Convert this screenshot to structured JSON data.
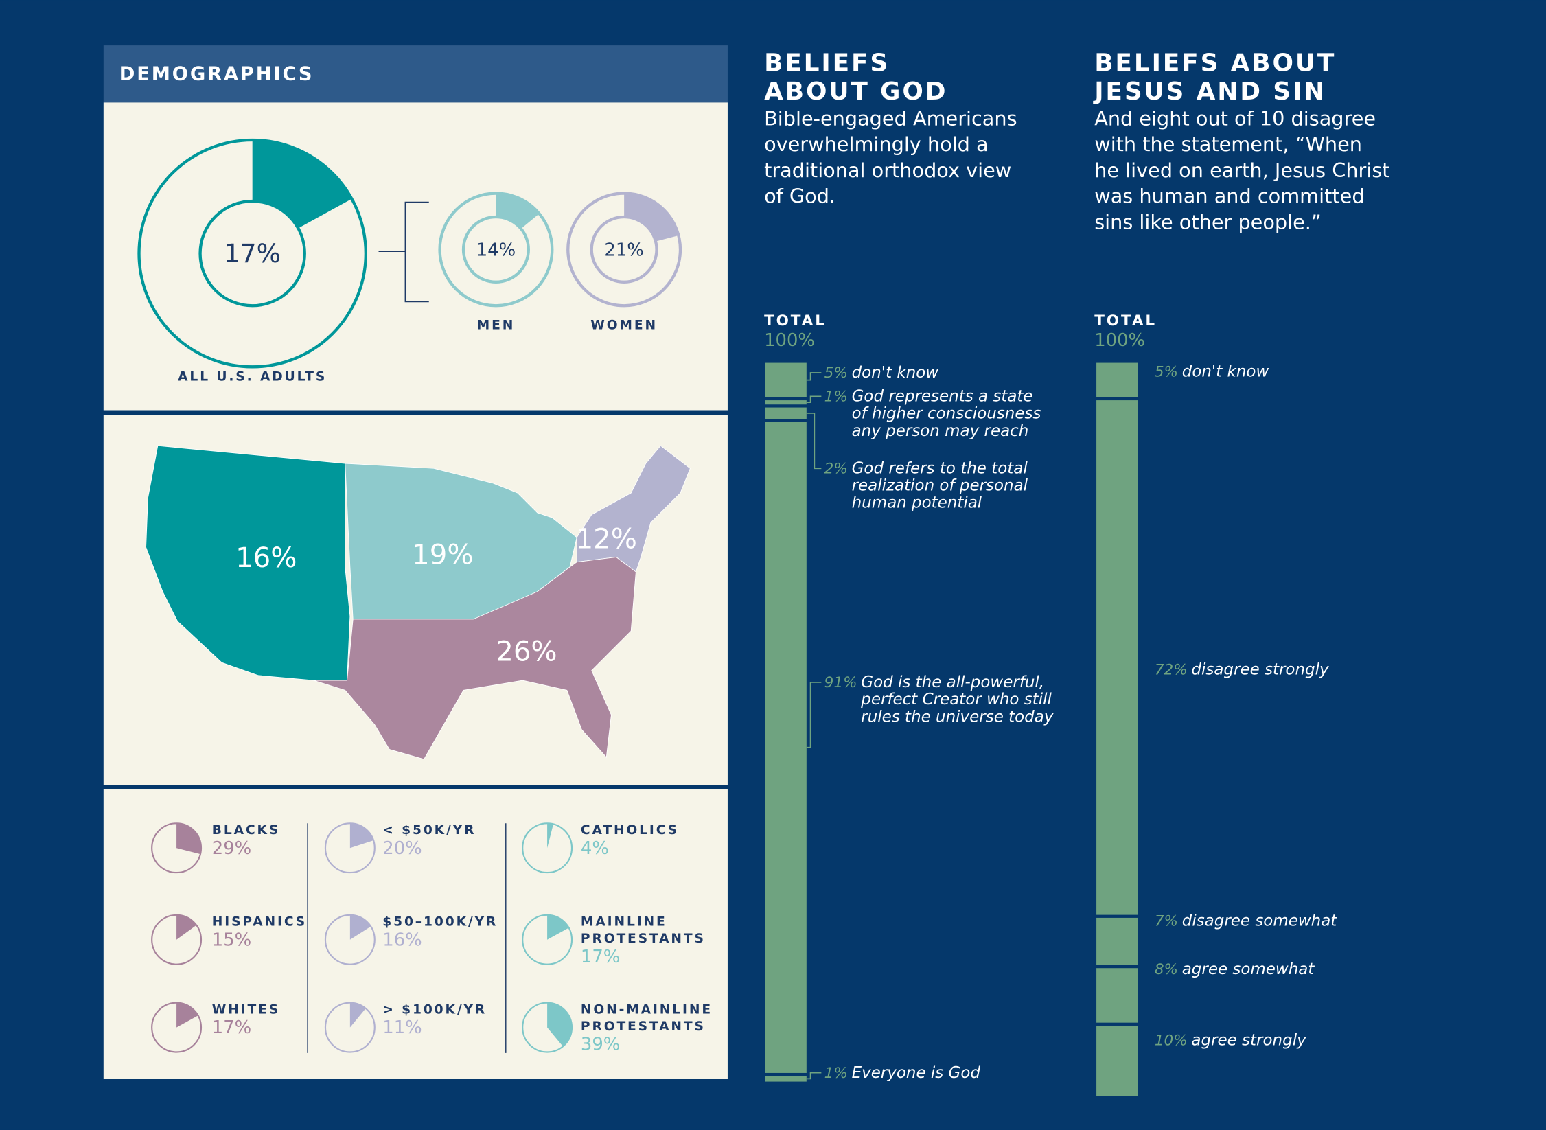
{
  "header": "DEMOGRAPHICS",
  "chart_data": [
    {
      "type": "donut",
      "categories": [
        "ALL U.S. ADULTS",
        "MEN",
        "WOMEN"
      ],
      "values": [
        17,
        14,
        21
      ],
      "value_labels": [
        "17%",
        "14%",
        "21%"
      ],
      "colors": [
        "#00979a",
        "#8ecacc",
        "#b3b3cf"
      ]
    },
    {
      "type": "map",
      "categories": [
        null,
        null,
        null,
        null
      ],
      "values": [
        16,
        19,
        12,
        26
      ],
      "value_labels": [
        "16%",
        "19%",
        "12%",
        "26%"
      ],
      "colors": [
        "#00979a",
        "#8ecacc",
        "#b3b3cf",
        "#ab879e"
      ]
    },
    {
      "type": "pie",
      "categories": [
        [
          "BLACKS"
        ],
        [
          "HISPANICS"
        ],
        [
          "WHITES"
        ],
        [
          "< $50K/YR"
        ],
        [
          "$50–100K/YR"
        ],
        [
          "> $100K/YR"
        ],
        [
          "CATHOLICS"
        ],
        [
          "MAINLINE",
          "PROTESTANTS"
        ],
        [
          "NON-MAINLINE",
          "PROTESTANTS"
        ]
      ],
      "values": [
        29,
        15,
        17,
        20,
        16,
        11,
        4,
        17,
        39
      ],
      "value_labels": [
        "29%",
        "15%",
        "17%",
        "20%",
        "16%",
        "11%",
        "4%",
        "17%",
        "39%"
      ],
      "colors": [
        "#a7829b",
        "#a7829b",
        "#a7829b",
        "#b0b0d0",
        "#b0b0d0",
        "#b0b0d0",
        "#7dc7c8",
        "#7dc7c8",
        "#7dc7c8"
      ]
    },
    {
      "type": "stacked-bar",
      "title": [
        "BELIEFS",
        "ABOUT GOD"
      ],
      "subtitle": [
        "Bible-engaged Americans",
        "overwhelmingly hold a",
        "traditional orthodox view",
        "of God."
      ],
      "total_name": "TOTAL",
      "total": 100,
      "total_label": "100%",
      "color": "#6fa380",
      "categories": [
        [
          "don't know"
        ],
        [
          "God represents a state",
          "of higher consciousness",
          "any person may reach"
        ],
        [
          "God refers to the total",
          "realization of personal",
          "human potential"
        ],
        [
          "God is the all-powerful,",
          "perfect Creator who still",
          "rules the universe today"
        ],
        [
          "Everyone is God"
        ]
      ],
      "values": [
        5,
        1,
        2,
        91,
        1
      ],
      "value_labels": [
        "5%",
        "1%",
        "2%",
        "91%",
        "1%"
      ]
    },
    {
      "type": "stacked-bar",
      "title": [
        "BELIEFS ABOUT",
        "JESUS AND SIN"
      ],
      "subtitle": [
        "And eight out of 10 disagree",
        "with the statement, “When",
        "he lived on earth, Jesus Christ",
        "was human and committed",
        "sins like other people.”"
      ],
      "total_name": "TOTAL",
      "total": 100,
      "total_label": "100%",
      "color": "#6fa380",
      "categories": [
        [
          "don't know"
        ],
        [
          "disagree strongly"
        ],
        [
          "disagree somewhat"
        ],
        [
          "agree somewhat"
        ],
        [
          "agree strongly"
        ]
      ],
      "values": [
        5,
        72,
        7,
        8,
        10
      ],
      "value_labels": [
        "5%",
        "72%",
        "7%",
        "8%",
        "10%"
      ]
    }
  ]
}
